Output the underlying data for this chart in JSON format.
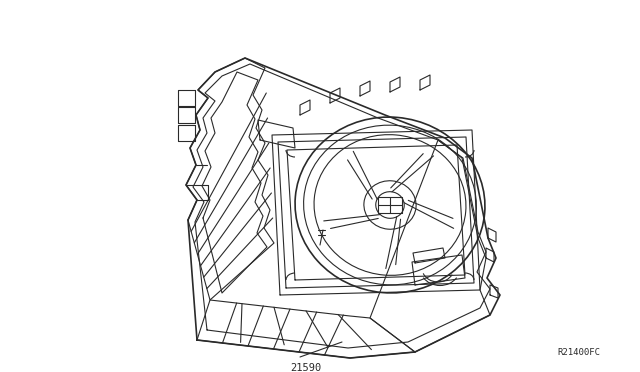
{
  "background_color": "#ffffff",
  "line_color": "#2a2a2a",
  "line_width": 0.8,
  "label_21590": "21590",
  "label_ref": "R21400FC",
  "fig_width": 6.4,
  "fig_height": 3.72,
  "dpi": 100
}
